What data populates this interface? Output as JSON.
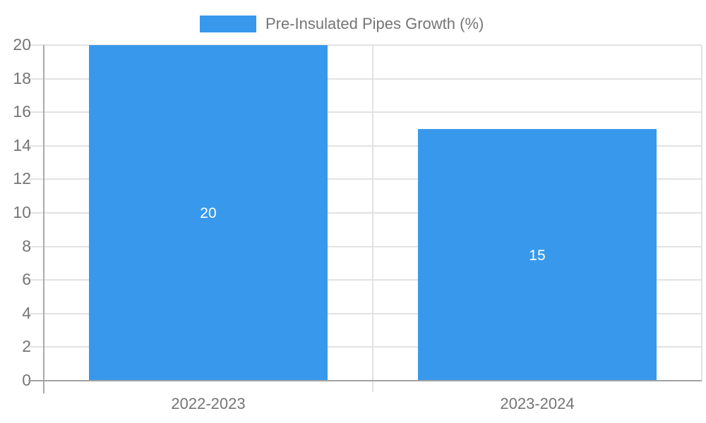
{
  "legend": {
    "label": "Pre-Insulated Pipes Growth (%)",
    "swatch_color": "#3899ec"
  },
  "chart_data": {
    "type": "bar",
    "categories": [
      "2022-2023",
      "2023-2024"
    ],
    "series": [
      {
        "name": "Pre-Insulated Pipes Growth (%)",
        "values": [
          20,
          15
        ]
      }
    ],
    "value_labels": [
      "20",
      "15"
    ],
    "title": "",
    "xlabel": "",
    "ylabel": "",
    "ylim": [
      0,
      20
    ],
    "yticks": [
      0,
      2,
      4,
      6,
      8,
      10,
      12,
      14,
      16,
      18,
      20
    ],
    "grid": true,
    "legend_position": "top-center",
    "colors": {
      "bar": "#3899ec",
      "value_label": "#ffffff",
      "axis_text": "#757575",
      "gridline": "#e2e2e2",
      "axis_line": "#a9a9a9"
    }
  }
}
